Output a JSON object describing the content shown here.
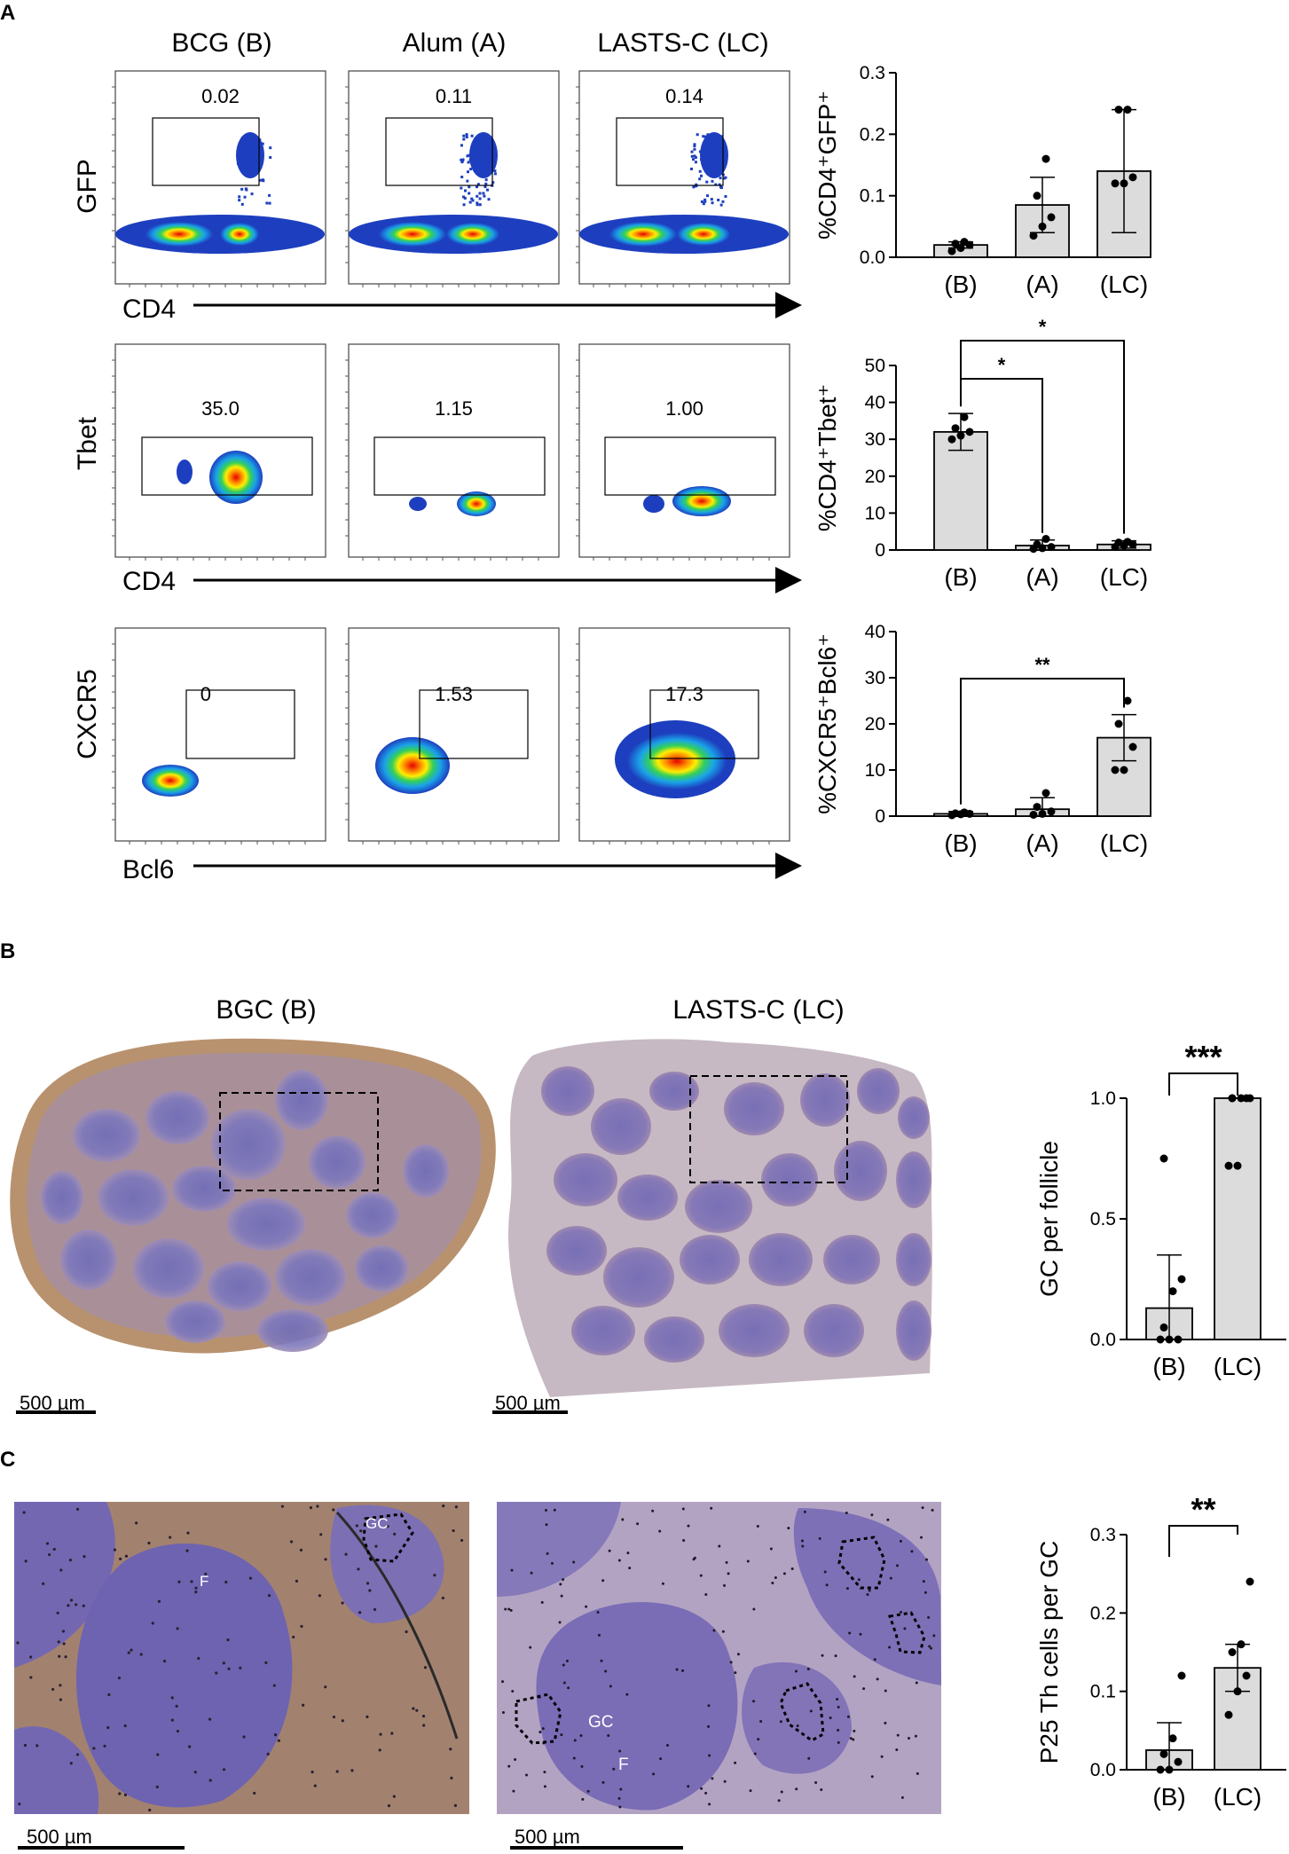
{
  "panels": {
    "A": {
      "letter": "A",
      "groups": [
        "BCG (B)",
        "Alum (A)",
        "LASTS-C (LC)"
      ],
      "rows": [
        {
          "y_axis": "GFP",
          "x_axis": "CD4",
          "gate_values": [
            "0.02",
            "0.11",
            "0.14"
          ]
        },
        {
          "y_axis": "Tbet",
          "x_axis": "CD4",
          "gate_values": [
            "35.0",
            "1.15",
            "1.00"
          ]
        },
        {
          "y_axis": "CXCR5",
          "x_axis": "Bcl6",
          "gate_values": [
            "0",
            "1.53",
            "17.3"
          ]
        }
      ]
    },
    "B": {
      "letter": "B",
      "titles": [
        "BGC (B)",
        "LASTS-C (LC)"
      ],
      "scale_bars": [
        "500 µm",
        "500 µm"
      ]
    },
    "C": {
      "letter": "C",
      "scale_bars": [
        "500 µm",
        "500 µm"
      ],
      "labels_left": [
        "GC",
        "F"
      ],
      "labels_right": [
        "GC",
        "F"
      ]
    }
  },
  "colors": {
    "bar_fill": "#dcdcdc",
    "dot": "#000000",
    "he_purple": "#7d6fb4",
    "he_brown": "#b48a66"
  },
  "chart_data": [
    {
      "type": "bar",
      "id": "gfp",
      "ylabel": "%CD4⁺GFP⁺",
      "categories": [
        "(B)",
        "(A)",
        "(LC)"
      ],
      "values": [
        0.02,
        0.085,
        0.14
      ],
      "errors": [
        0.005,
        0.045,
        0.1
      ],
      "points": [
        [
          0.01,
          0.015,
          0.02,
          0.022,
          0.025
        ],
        [
          0.035,
          0.05,
          0.065,
          0.1,
          0.16
        ],
        [
          0.12,
          0.12,
          0.13,
          0.24,
          0.24
        ]
      ],
      "ylim": [
        0,
        0.3
      ],
      "yticks": [
        "0.0",
        "0.1",
        "0.2",
        "0.3"
      ],
      "significance": []
    },
    {
      "type": "bar",
      "id": "tbet",
      "ylabel": "%CD4⁺Tbet⁺",
      "categories": [
        "(B)",
        "(A)",
        "(LC)"
      ],
      "values": [
        32,
        1.2,
        1.5
      ],
      "errors": [
        5,
        1.5,
        1
      ],
      "points": [
        [
          30,
          31,
          32,
          33,
          36
        ],
        [
          0.3,
          0.5,
          0.8,
          1.5,
          3
        ],
        [
          0.8,
          1.2,
          1.5,
          2,
          2.2
        ]
      ],
      "ylim": [
        0,
        50
      ],
      "yticks": [
        "0",
        "10",
        "20",
        "30",
        "40",
        "50"
      ],
      "significance": [
        {
          "from": 0,
          "to": 1,
          "label": "*"
        },
        {
          "from": 0,
          "to": 2,
          "label": "*"
        }
      ]
    },
    {
      "type": "bar",
      "id": "cxcr5",
      "ylabel": "%CXCR5⁺Bcl6⁺",
      "categories": [
        "(B)",
        "(A)",
        "(LC)"
      ],
      "values": [
        0.5,
        1.5,
        17
      ],
      "errors": [
        0.5,
        2.5,
        5
      ],
      "points": [
        [
          0.2,
          0.4,
          0.5,
          0.6,
          0.8
        ],
        [
          0.3,
          0.5,
          1,
          2,
          5
        ],
        [
          10,
          10,
          15,
          20,
          25
        ]
      ],
      "ylim": [
        0,
        40
      ],
      "yticks": [
        "0",
        "10",
        "20",
        "30",
        "40"
      ],
      "significance": [
        {
          "from": 0,
          "to": 2,
          "label": "**"
        }
      ]
    },
    {
      "type": "bar",
      "id": "gc",
      "ylabel": "GC per follicle",
      "categories": [
        "(B)",
        "(LC)"
      ],
      "values": [
        0.13,
        1.0
      ],
      "errors": [
        0.22,
        0.0
      ],
      "points": [
        [
          0.0,
          0.0,
          0.0,
          0.05,
          0.2,
          0.25,
          0.75
        ],
        [
          0.72,
          0.72,
          1.0,
          1.0,
          1.0,
          1.0,
          1.0
        ]
      ],
      "ylim": [
        0,
        1.0
      ],
      "yticks": [
        "0.0",
        "0.5",
        "1.0"
      ],
      "significance": [
        {
          "from": 0,
          "to": 1,
          "label": "***"
        }
      ]
    },
    {
      "type": "bar",
      "id": "p25",
      "ylabel": "P25 Th cells per GC",
      "categories": [
        "(B)",
        "(LC)"
      ],
      "values": [
        0.025,
        0.13
      ],
      "errors": [
        0.035,
        0.03
      ],
      "points": [
        [
          0.0,
          0.0,
          0.01,
          0.02,
          0.04,
          0.12
        ],
        [
          0.07,
          0.1,
          0.12,
          0.15,
          0.16,
          0.24
        ]
      ],
      "ylim": [
        0,
        0.3
      ],
      "yticks": [
        "0.0",
        "0.1",
        "0.2",
        "0.3"
      ],
      "significance": [
        {
          "from": 0,
          "to": 1,
          "label": "**"
        }
      ]
    }
  ]
}
